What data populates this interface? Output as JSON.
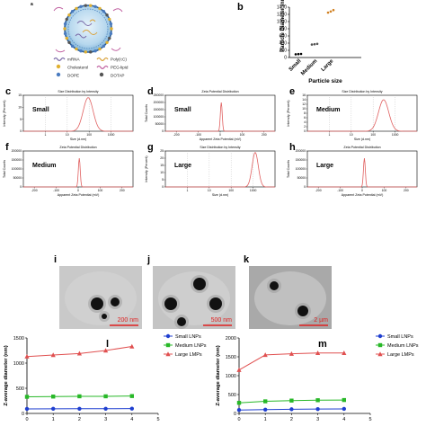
{
  "figure": {
    "panel_a": {
      "letter": "a",
      "legend_items": [
        {
          "label": "mRNA",
          "color": "#7a6aa8"
        },
        {
          "label": "Poly(I:C)",
          "color": "#d9a23a"
        },
        {
          "label": "Cholesterol",
          "color": "#e0b030"
        },
        {
          "label": "PEG-lipid",
          "color": "#c060a0"
        },
        {
          "label": "DOPE",
          "color": "#4a7bc0"
        },
        {
          "label": "DOTAP",
          "color": "#555555"
        }
      ]
    },
    "panel_b": {
      "letter": "b",
      "chart_data": {
        "type": "scatter",
        "categories": [
          "Small",
          "Medium",
          "Large"
        ],
        "values": [
          [
            90,
            95,
            100
          ],
          [
            360,
            370,
            380
          ],
          [
            1250,
            1280,
            1320
          ]
        ],
        "ylabel": "Particle Diameter (nm)",
        "xlabel": "Particle size",
        "ylim": [
          0,
          1400
        ],
        "yticks": [
          "0",
          "200",
          "400",
          "600",
          "800",
          "1000",
          "1200",
          "1400"
        ],
        "colors": [
          "#000000",
          "#555555",
          "#d08020"
        ]
      }
    },
    "distributions": [
      {
        "letter": "c",
        "title": "Size Distribution by Intensity",
        "label": "Small",
        "ylabel": "Intensity (Percent)",
        "xlabel": "Size (d.nm)",
        "kind": "size",
        "chart_data": {
          "type": "line",
          "peak_x": 90,
          "peak_y": 14,
          "width": 0.32,
          "yticks": [
            "0",
            "5",
            "10",
            "15"
          ],
          "xticks": [
            "1",
            "10",
            "100",
            "1000"
          ],
          "ylim": [
            0,
            15
          ]
        }
      },
      {
        "letter": "d",
        "title": "Zeta Potential Distribution",
        "label": "Small",
        "ylabel": "Total Counts",
        "xlabel": "Apparent Zeta Potential (mV)",
        "kind": "zeta",
        "chart_data": {
          "type": "line",
          "peak_x": 5,
          "peak_y": 200000,
          "width": 6,
          "yticks": [
            "0",
            "50000",
            "100000",
            "150000",
            "200000",
            "250000"
          ],
          "xticks": [
            "-200",
            "-100",
            "0",
            "100",
            "200"
          ],
          "ylim": [
            0,
            250000
          ]
        }
      },
      {
        "letter": "e",
        "title": "Size Distribution by Intensity",
        "label": "Medium",
        "ylabel": "Intensity (Percent)",
        "xlabel": "Size (d.nm)",
        "kind": "size",
        "chart_data": {
          "type": "line",
          "peak_x": 300,
          "peak_y": 14,
          "width": 0.33,
          "yticks": [
            "0",
            "2",
            "4",
            "6",
            "8",
            "10",
            "12",
            "14",
            "16"
          ],
          "xticks": [
            "1",
            "10",
            "100",
            "1000"
          ],
          "ylim": [
            0,
            16
          ]
        }
      },
      {
        "letter": "f",
        "title": "Zeta Potential Distribution",
        "label": "Medium",
        "ylabel": "Total Counts",
        "xlabel": "Apparent Zeta Potential (mV)",
        "kind": "zeta",
        "chart_data": {
          "type": "line",
          "peak_x": 5,
          "peak_y": 160000,
          "width": 6,
          "yticks": [
            "0",
            "50000",
            "100000",
            "150000",
            "200000"
          ],
          "xticks": [
            "-200",
            "-100",
            "0",
            "100",
            "200"
          ],
          "ylim": [
            0,
            200000
          ]
        }
      },
      {
        "letter": "g",
        "title": "Size Distribution by Intensity",
        "label": "Large",
        "ylabel": "Intensity (Percent)",
        "xlabel": "Size (d.nm)",
        "kind": "size",
        "chart_data": {
          "type": "line",
          "peak_x": 1250,
          "peak_y": 24,
          "width": 0.2,
          "yticks": [
            "0",
            "5",
            "10",
            "15",
            "20",
            "25"
          ],
          "xticks": [
            "1",
            "10",
            "100",
            "1000"
          ],
          "ylim": [
            0,
            25
          ]
        }
      },
      {
        "letter": "h",
        "title": "Zeta Potential Distribution",
        "label": "Large",
        "ylabel": "Total Counts",
        "xlabel": "Apparent Zeta Potential (mV)",
        "kind": "zeta",
        "chart_data": {
          "type": "line",
          "peak_x": 10,
          "peak_y": 160000,
          "width": 6,
          "yticks": [
            "0",
            "50000",
            "100000",
            "150000",
            "200000"
          ],
          "xticks": [
            "-200",
            "-100",
            "0",
            "100",
            "200"
          ],
          "ylim": [
            0,
            200000
          ]
        }
      }
    ],
    "micrographs": [
      {
        "letter": "i",
        "scale": "200 nm"
      },
      {
        "letter": "j",
        "scale": "500 nm"
      },
      {
        "letter": "k",
        "scale": "2 µm"
      }
    ],
    "stability": [
      {
        "letter": "l",
        "ylabel": "Z-average diameter (nm)",
        "chart_data": {
          "type": "line",
          "x": [
            0,
            1,
            2,
            3,
            4
          ],
          "xticks": [
            "0",
            "1",
            "2",
            "3",
            "4",
            "5"
          ],
          "yticks": [
            "0",
            "500",
            "1000",
            "1500"
          ],
          "ylim": [
            0,
            1500
          ],
          "xlim": [
            0,
            5
          ],
          "series": [
            {
              "name": "Small LNPs",
              "values": [
                90,
                92,
                93,
                93,
                95
              ],
              "color": "#1f3fd0",
              "marker": "circle"
            },
            {
              "name": "Medium LNPs",
              "values": [
                330,
                335,
                340,
                340,
                345
              ],
              "color": "#28b828",
              "marker": "square"
            },
            {
              "name": "Large LMPs",
              "values": [
                1130,
                1160,
                1190,
                1250,
                1330
              ],
              "color": "#e05050",
              "marker": "triangle"
            }
          ]
        }
      },
      {
        "letter": "m",
        "ylabel": "Z-average diameter (nm)",
        "chart_data": {
          "type": "line",
          "x": [
            0,
            1,
            2,
            3,
            4
          ],
          "xticks": [
            "0",
            "1",
            "2",
            "3",
            "4",
            "5"
          ],
          "yticks": [
            "0",
            "500",
            "1000",
            "1500",
            "2000"
          ],
          "ylim": [
            0,
            2000
          ],
          "xlim": [
            0,
            5
          ],
          "series": [
            {
              "name": "Small LNPs",
              "values": [
                90,
                100,
                110,
                115,
                120
              ],
              "color": "#1f3fd0",
              "marker": "circle"
            },
            {
              "name": "Medium LNPs",
              "values": [
                280,
                320,
                340,
                350,
                355
              ],
              "color": "#28b828",
              "marker": "square"
            },
            {
              "name": "Large LMPs",
              "values": [
                1150,
                1550,
                1580,
                1600,
                1600
              ],
              "color": "#e05050",
              "marker": "triangle"
            }
          ]
        }
      }
    ]
  }
}
